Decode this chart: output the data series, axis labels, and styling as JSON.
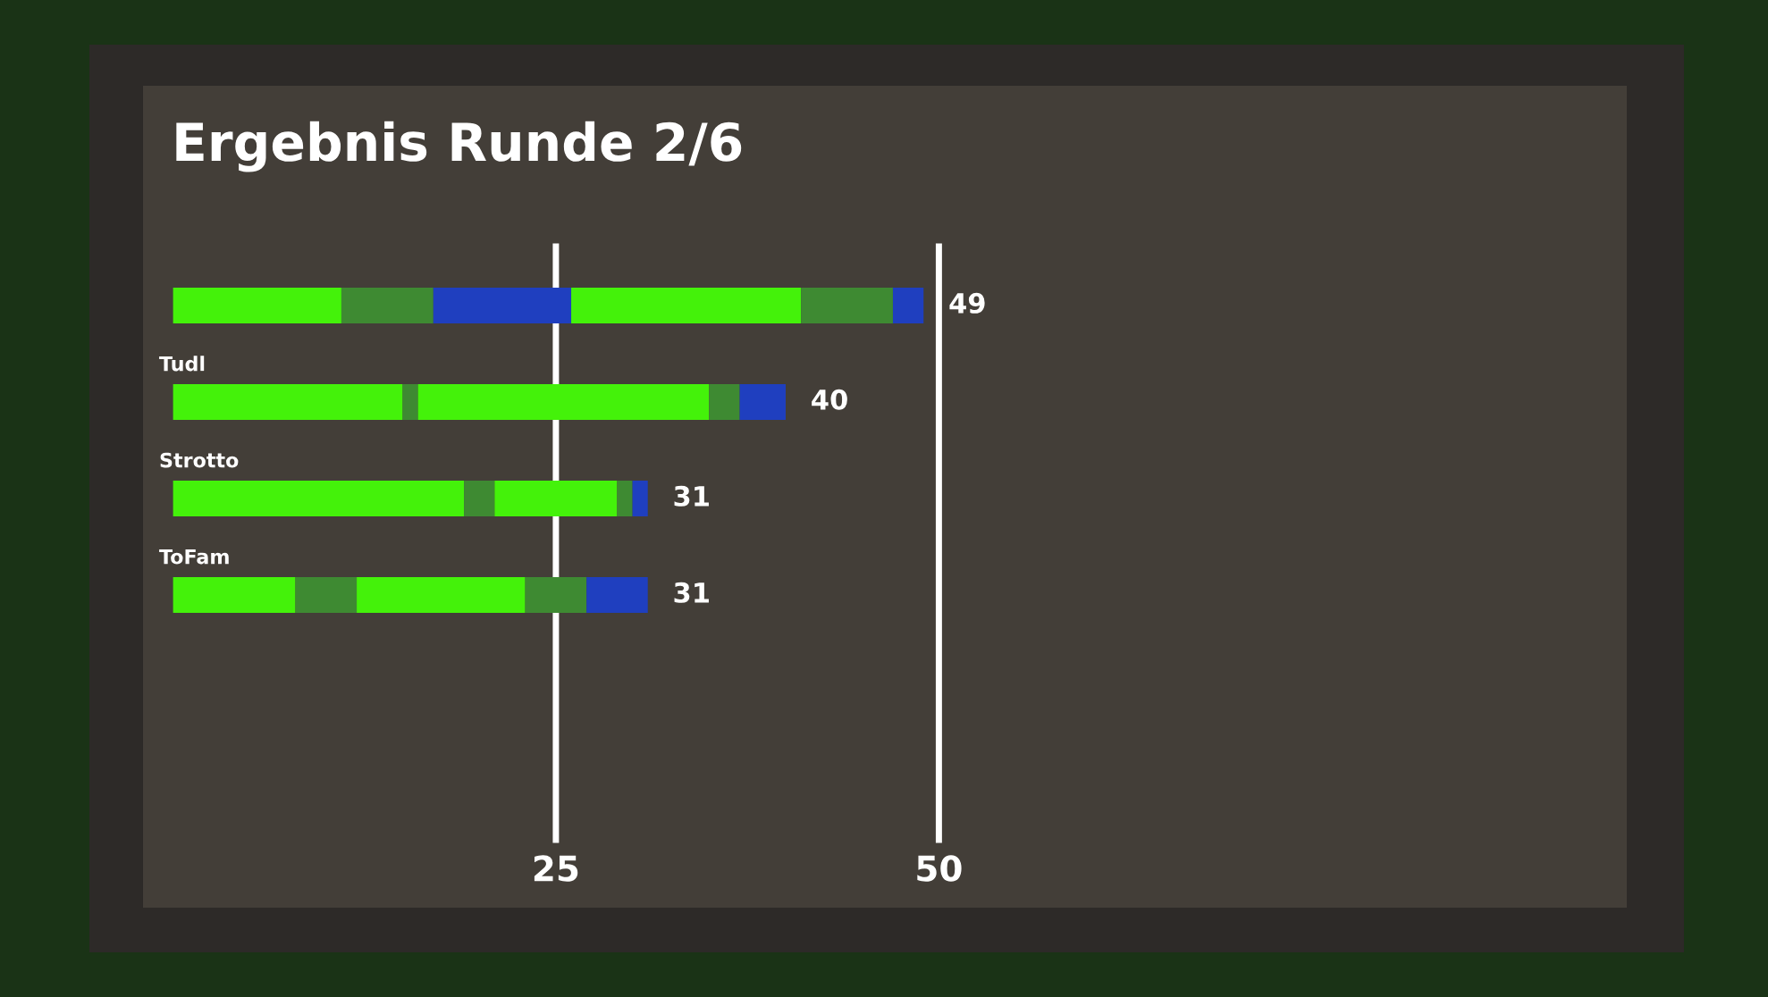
{
  "chart_data": {
    "type": "bar",
    "orientation": "horizontal",
    "stacked": true,
    "title": "Ergebnis Runde 2/6",
    "categories": [
      null,
      "Tudl",
      "Strotto",
      "ToFam"
    ],
    "series": [
      {
        "color": "#44f20a",
        "values": [
          11,
          15,
          19,
          8
        ]
      },
      {
        "color": "#3e8a32",
        "values": [
          6,
          1,
          2,
          4
        ]
      },
      {
        "color": "#1f3fbf",
        "values": [
          9,
          0,
          0,
          0
        ]
      },
      {
        "color": "#44f20a",
        "values": [
          15,
          19,
          8,
          11
        ]
      },
      {
        "color": "#3e8a32",
        "values": [
          6,
          2,
          1,
          4
        ]
      },
      {
        "color": "#1f3fbf",
        "values": [
          2,
          3,
          1,
          4
        ]
      }
    ],
    "totals": [
      "49",
      "40",
      "31",
      "31"
    ],
    "xlim": [
      0,
      50
    ],
    "xticks": [
      25,
      50
    ],
    "grid": "x"
  }
}
